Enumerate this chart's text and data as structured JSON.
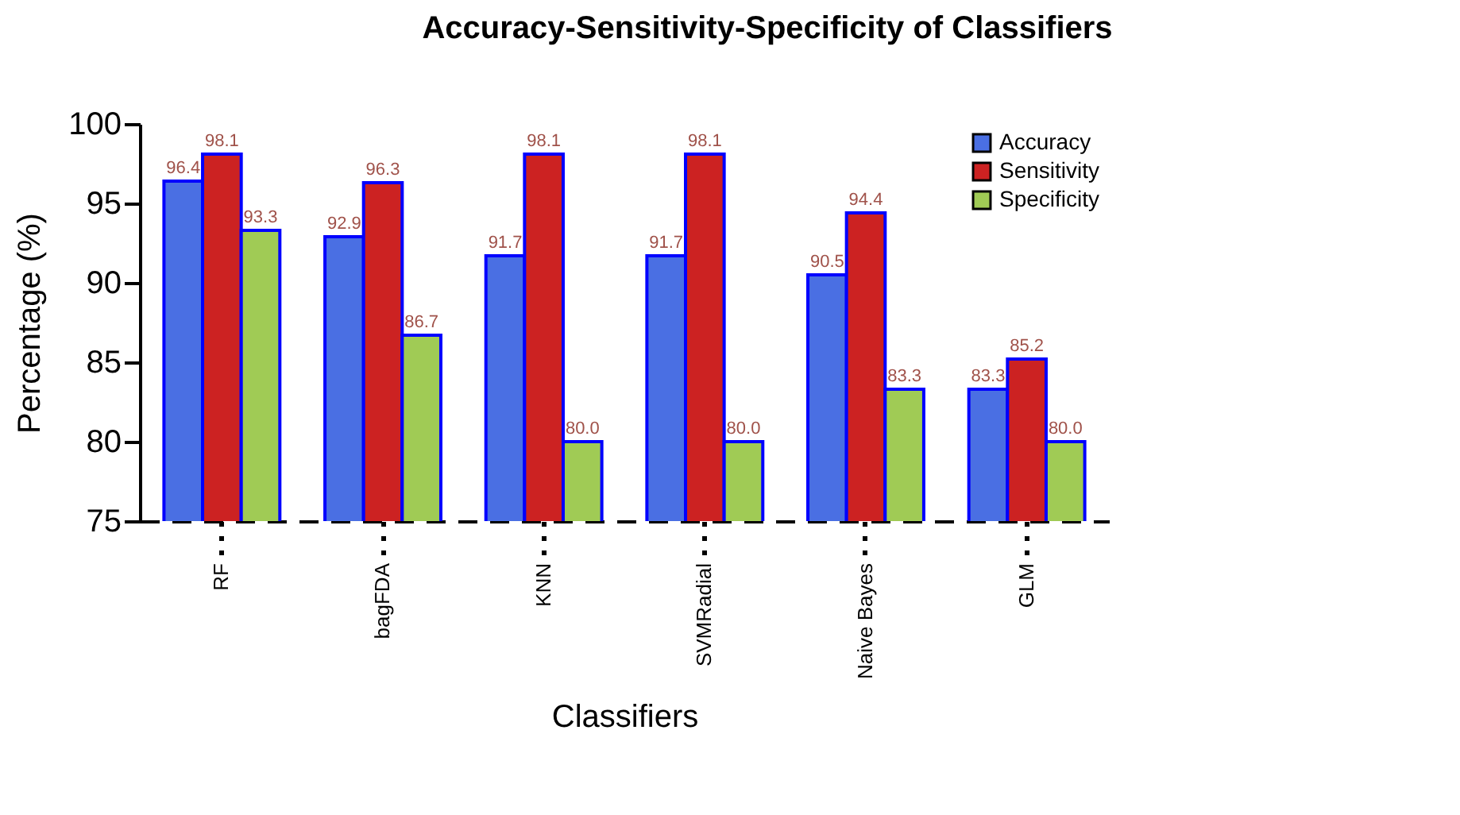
{
  "chart_data": {
    "type": "bar",
    "title": "Accuracy-Sensitivity-Specificity of Classifiers",
    "xlabel": "Classifiers",
    "ylabel": "Percentage (%)",
    "categories": [
      "RF",
      "bagFDA",
      "KNN",
      "SVMRadial",
      "Naive Bayes",
      "GLM"
    ],
    "series": [
      {
        "name": "Accuracy",
        "color": "#4a6fe3",
        "values": [
          96.4,
          92.9,
          91.7,
          91.7,
          90.5,
          83.3
        ],
        "value_labels": [
          "96.4",
          "92.9",
          "91.7",
          "91.7",
          "90.5",
          "83.3"
        ]
      },
      {
        "name": "Sensitivity",
        "color": "#cc2222",
        "values": [
          98.1,
          96.3,
          98.1,
          98.1,
          94.4,
          85.2
        ],
        "value_labels": [
          "98.1",
          "96.3",
          "98.1",
          "98.1",
          "94.4",
          "85.2"
        ]
      },
      {
        "name": "Specificity",
        "color": "#a0cb55",
        "values": [
          93.3,
          86.7,
          80.0,
          80.0,
          83.3,
          80.0
        ],
        "value_labels": [
          "93.3",
          "86.7",
          "80.0",
          "80.0",
          "83.3",
          "80.0"
        ]
      }
    ],
    "ylim": [
      75,
      100
    ],
    "yticks": [
      75,
      80,
      85,
      90,
      95,
      100
    ],
    "legend": "top right",
    "grid": false
  }
}
